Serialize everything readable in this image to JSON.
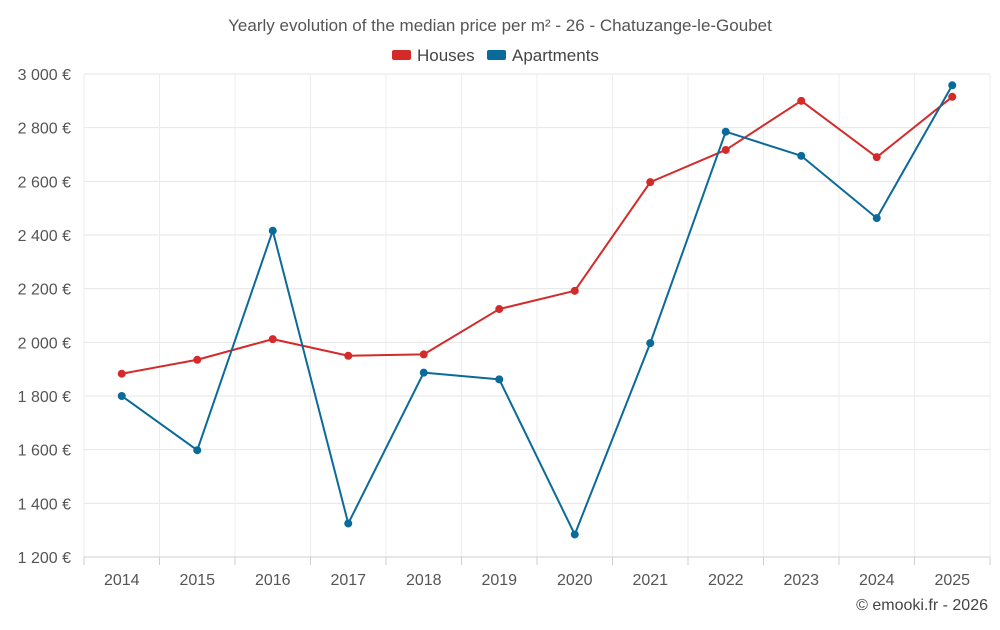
{
  "chart_data": {
    "type": "line",
    "title": "Yearly evolution of the median price per m² - 26 - Chatuzange-le-Goubet",
    "categories": [
      "2014",
      "2015",
      "2016",
      "2017",
      "2018",
      "2019",
      "2020",
      "2021",
      "2022",
      "2023",
      "2024",
      "2025"
    ],
    "series": [
      {
        "name": "Houses",
        "color": "#d42a2a",
        "values": [
          1883,
          1935,
          2012,
          1950,
          1955,
          2124,
          2192,
          2597,
          2717,
          2900,
          2690,
          2915
        ]
      },
      {
        "name": "Apartments",
        "color": "#0a6a9a",
        "values": [
          1800,
          1598,
          2416,
          1325,
          1887,
          1862,
          1284,
          1997,
          2785,
          2695,
          2463,
          2958
        ]
      }
    ],
    "ylim": [
      1200,
      3000
    ],
    "yticks": [
      1200,
      1400,
      1600,
      1800,
      2000,
      2200,
      2400,
      2600,
      2800,
      3000
    ],
    "ytick_labels": [
      "1 200 €",
      "1 400 €",
      "1 600 €",
      "1 800 €",
      "2 000 €",
      "2 200 €",
      "2 400 €",
      "2 600 €",
      "2 800 €",
      "3 000 €"
    ],
    "xlabel": "",
    "ylabel": "",
    "grid": true,
    "legend_position": "top-center"
  },
  "footer": {
    "credit": "© emooki.fr - 2026"
  }
}
